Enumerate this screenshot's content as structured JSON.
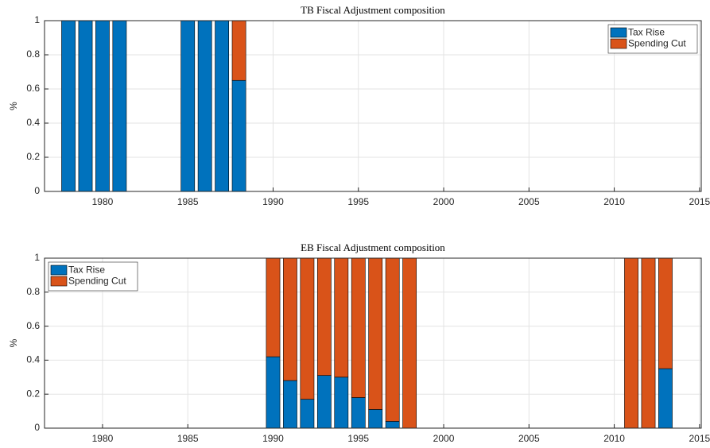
{
  "chart_data": [
    {
      "type": "bar",
      "stacked": true,
      "title": "TB Fiscal Adjustment composition",
      "y_label": "%",
      "x": [
        1978,
        1979,
        1980,
        1981,
        1985,
        1986,
        1987,
        1988,
        1990,
        1991,
        1992,
        1993,
        1994,
        1995,
        1996,
        1997,
        1998,
        2011,
        2012,
        2013
      ],
      "series": [
        {
          "name": "Tax Rise",
          "color": "#0072BD",
          "values": [
            1,
            1,
            1,
            1,
            1,
            1,
            1,
            0.65,
            0,
            0,
            0,
            0,
            0,
            0,
            0,
            0,
            0,
            0,
            0,
            0
          ]
        },
        {
          "name": "Spending Cut",
          "color": "#D95319",
          "values": [
            0,
            0,
            0,
            0,
            0,
            0,
            0,
            0.35,
            0,
            0,
            0,
            0,
            0,
            0,
            0,
            0,
            0,
            0,
            0,
            0
          ]
        }
      ],
      "xlim": [
        1976.6,
        2015.1
      ],
      "xticks": [
        1980,
        1985,
        1990,
        1995,
        2000,
        2005,
        2010,
        2015
      ],
      "ylim": [
        0,
        1
      ],
      "yticks": [
        0,
        0.2,
        0.4,
        0.6,
        0.8,
        1
      ],
      "grid": true,
      "legend": "northeast"
    },
    {
      "type": "bar",
      "stacked": true,
      "title": "EB Fiscal Adjustment composition",
      "y_label": "%",
      "x": [
        1978,
        1979,
        1980,
        1981,
        1985,
        1986,
        1987,
        1988,
        1990,
        1991,
        1992,
        1993,
        1994,
        1995,
        1996,
        1997,
        1998,
        2011,
        2012,
        2013
      ],
      "series": [
        {
          "name": "Tax Rise",
          "color": "#0072BD",
          "values": [
            0,
            0,
            0,
            0,
            0,
            0,
            0,
            0,
            0.42,
            0.28,
            0.17,
            0.31,
            0.3,
            0.18,
            0.11,
            0.04,
            0,
            0,
            0,
            0.35
          ]
        },
        {
          "name": "Spending Cut",
          "color": "#D95319",
          "values": [
            0,
            0,
            0,
            0,
            0,
            0,
            0,
            0,
            0.58,
            0.72,
            0.83,
            0.69,
            0.7,
            0.82,
            0.89,
            0.96,
            1,
            1,
            1,
            0.65
          ]
        }
      ],
      "xlim": [
        1976.6,
        2015.1
      ],
      "xticks": [
        1980,
        1985,
        1990,
        1995,
        2000,
        2005,
        2010,
        2015
      ],
      "ylim": [
        0,
        1
      ],
      "yticks": [
        0,
        0.2,
        0.4,
        0.6,
        0.8,
        1
      ],
      "grid": true,
      "legend": "northwest"
    }
  ]
}
